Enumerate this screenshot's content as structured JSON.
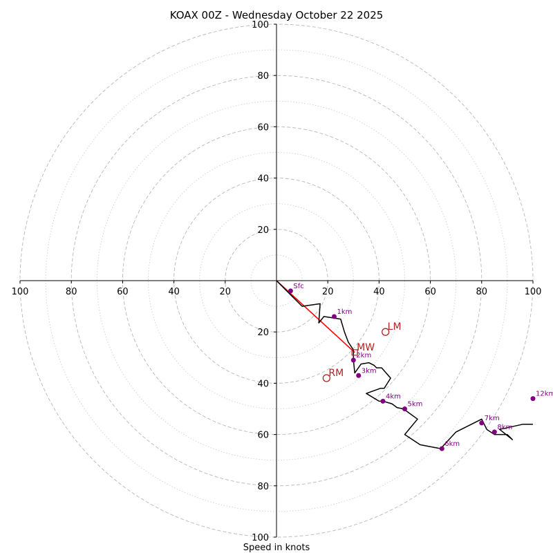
{
  "chart_data": {
    "type": "hodograph",
    "title": "KOAX 00Z - Wednesday October 22 2025",
    "xlabel": "Speed in knots",
    "range": [
      0,
      100
    ],
    "ring_major": [
      20,
      40,
      60,
      80,
      100
    ],
    "ring_minor": [
      10,
      30,
      50,
      70,
      90
    ],
    "axis_ticks": [
      {
        "value": 20,
        "label": "20"
      },
      {
        "value": 40,
        "label": "40"
      },
      {
        "value": 60,
        "label": "60"
      },
      {
        "value": 80,
        "label": "80"
      },
      {
        "value": 100,
        "label": "100"
      }
    ],
    "wind_profile": {
      "u": [
        0,
        4,
        10,
        17,
        16.5,
        18.5,
        25,
        26.5,
        28,
        30,
        30,
        30.5,
        33,
        36,
        38,
        39,
        40,
        41,
        44.5,
        42,
        40.5,
        35,
        40,
        42,
        41.5,
        45,
        47,
        49.5,
        55,
        50,
        56,
        64,
        70,
        80,
        82,
        85,
        90,
        92,
        87,
        96,
        100
      ],
      "v": [
        0,
        4,
        10,
        9,
        16.5,
        14,
        15,
        20,
        24,
        27,
        31,
        36,
        32.5,
        32,
        33,
        34,
        34,
        34,
        38,
        42,
        42,
        44,
        47,
        47,
        47,
        48,
        49.5,
        50,
        54,
        60,
        64,
        65.5,
        59,
        54,
        58,
        60,
        60,
        62,
        58,
        56,
        56
      ]
    },
    "height_markers": [
      {
        "label": "Sfc",
        "u": 5.5,
        "v": 4
      },
      {
        "label": "1km",
        "u": 22.5,
        "v": 14
      },
      {
        "label": "2km",
        "u": 30,
        "v": 31
      },
      {
        "label": "3km",
        "u": 32,
        "v": 37
      },
      {
        "label": "4km",
        "u": 41.5,
        "v": 47
      },
      {
        "label": "5km",
        "u": 50,
        "v": 50
      },
      {
        "label": "6km",
        "u": 64.5,
        "v": 65.5
      },
      {
        "label": "7km",
        "u": 80,
        "v": 55.5
      },
      {
        "label": "8km",
        "u": 85,
        "v": 59
      },
      {
        "label": "12km",
        "u": 100,
        "v": 46
      }
    ],
    "mean_wind_vector": {
      "from_u": 0,
      "from_v": 0,
      "to_u": 30.5,
      "to_v": 28
    },
    "storm_motion": [
      {
        "label": "LM",
        "u": 42.5,
        "v": 20
      },
      {
        "label": "MW",
        "u": 30.5,
        "v": 28
      },
      {
        "label": "RM",
        "u": 19.5,
        "v": 38
      }
    ],
    "colors": {
      "profile": "#000000",
      "marker": "#800080",
      "storm_motion": "#b22222",
      "mean_wind": "#ff0000",
      "grid": "#bdbdbd",
      "axes": "#000000"
    }
  }
}
